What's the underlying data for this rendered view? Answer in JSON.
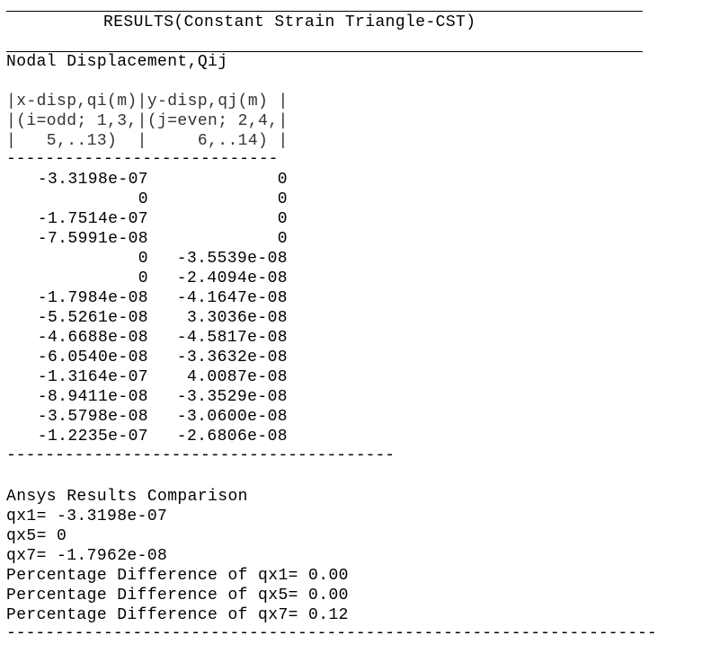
{
  "header": {
    "title": "RESULTS(Constant Strain Triangle-CST)"
  },
  "section": {
    "heading": "Nodal Displacement,Qij"
  },
  "table": {
    "header_lines": [
      "|x-disp,qi(m)|y-disp,qj(m) |",
      "|(i=odd; 1,3,|(j=even; 2,4,|",
      "|   5,..13)  |     6,..14) |"
    ],
    "separator": "----------------------------",
    "rows": [
      {
        "x": "-3.3198e-07",
        "y": "0"
      },
      {
        "x": "0",
        "y": "0"
      },
      {
        "x": "-1.7514e-07",
        "y": "0"
      },
      {
        "x": "-7.5991e-08",
        "y": "0"
      },
      {
        "x": "0",
        "y": "-3.5539e-08"
      },
      {
        "x": "0",
        "y": "-2.4094e-08"
      },
      {
        "x": "-1.7984e-08",
        "y": "-4.1647e-08"
      },
      {
        "x": "-5.5261e-08",
        "y": "3.3036e-08"
      },
      {
        "x": "-4.6688e-08",
        "y": "-4.5817e-08"
      },
      {
        "x": "-6.0540e-08",
        "y": "-3.3632e-08"
      },
      {
        "x": "-1.3164e-07",
        "y": "4.0087e-08"
      },
      {
        "x": "-8.9411e-08",
        "y": "-3.3529e-08"
      },
      {
        "x": "-3.5798e-08",
        "y": "-3.0600e-08"
      },
      {
        "x": "-1.2235e-07",
        "y": "-2.6806e-08"
      }
    ],
    "footer_separator": "----------------------------------------"
  },
  "comparison": {
    "heading": "Ansys Results Comparison",
    "lines": [
      "qx1= -3.3198e-07",
      "qx5= 0",
      "qx7= -1.7962e-08",
      "Percentage Difference of qx1= 0.00",
      "Percentage Difference of qx5= 0.00",
      "Percentage Difference of qx7= 0.12"
    ],
    "end_separator": "-------------------------------------------------------------------"
  }
}
